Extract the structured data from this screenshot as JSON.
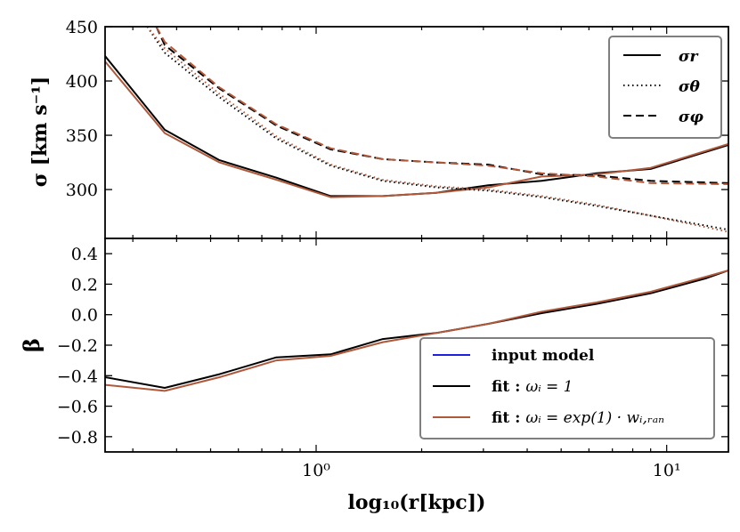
{
  "chart_data": [
    {
      "type": "line",
      "panel": "top",
      "ylabel": "σ [km s⁻¹]",
      "x_scale": "log",
      "xlim": [
        0.25,
        15
      ],
      "ylim": [
        255,
        450
      ],
      "yticks": [
        300,
        350,
        400,
        450
      ],
      "legend_placement": "top-right",
      "legend": [
        {
          "label": "σr",
          "style": "solid"
        },
        {
          "label": "σθ",
          "style": "dotted"
        },
        {
          "label": "σφ",
          "style": "dashed"
        }
      ],
      "series": [
        {
          "component": "σr",
          "fit": "black",
          "style": "solid",
          "x": [
            0.25,
            0.37,
            0.53,
            0.77,
            1.1,
            1.55,
            2.2,
            3.1,
            4.4,
            6.3,
            9,
            15
          ],
          "y": [
            423,
            355,
            327,
            311,
            294,
            294,
            297,
            304,
            308,
            315,
            319,
            341
          ]
        },
        {
          "component": "σr",
          "fit": "brown",
          "style": "solid",
          "x": [
            0.25,
            0.37,
            0.53,
            0.77,
            1.1,
            1.55,
            2.2,
            3.1,
            4.4,
            6.3,
            9,
            15
          ],
          "y": [
            418,
            352,
            325,
            309,
            293,
            294,
            297,
            302,
            312,
            314,
            320,
            342
          ]
        },
        {
          "component": "σθ",
          "fit": "black",
          "style": "dotted",
          "x": [
            0.33,
            0.37,
            0.53,
            0.77,
            1.1,
            1.55,
            2.2,
            3.1,
            4.4,
            6.3,
            9,
            15
          ],
          "y": [
            450,
            426,
            385,
            347,
            322,
            308,
            302,
            299,
            293,
            285,
            276,
            263
          ]
        },
        {
          "component": "σθ",
          "fit": "brown",
          "style": "dotted",
          "x": [
            0.33,
            0.37,
            0.53,
            0.77,
            1.1,
            1.55,
            2.2,
            3.1,
            4.4,
            6.3,
            9,
            15
          ],
          "y": [
            450,
            430,
            388,
            349,
            323,
            309,
            303,
            300,
            294,
            286,
            276,
            261
          ]
        },
        {
          "component": "σφ",
          "fit": "black",
          "style": "dashed",
          "x": [
            0.35,
            0.37,
            0.53,
            0.77,
            1.1,
            1.55,
            2.2,
            3.1,
            4.4,
            6.3,
            9,
            15
          ],
          "y": [
            450,
            433,
            393,
            359,
            337,
            328,
            325,
            323,
            314,
            313,
            308,
            306
          ]
        },
        {
          "component": "σφ",
          "fit": "brown",
          "style": "dashed",
          "x": [
            0.35,
            0.37,
            0.53,
            0.77,
            1.1,
            1.55,
            2.2,
            3.1,
            4.4,
            6.3,
            9,
            15
          ],
          "y": [
            450,
            436,
            394,
            360,
            338,
            328,
            325,
            322,
            315,
            312,
            306,
            305
          ]
        }
      ]
    },
    {
      "type": "line",
      "panel": "bottom",
      "xlabel": "log₁₀(r[kpc])",
      "ylabel": "β",
      "x_scale": "log",
      "xlim": [
        0.25,
        15
      ],
      "ylim": [
        -0.9,
        0.5
      ],
      "xticks": [
        {
          "value": 1,
          "label": "10⁰"
        },
        {
          "value": 10,
          "label": "10¹"
        }
      ],
      "yticks": [
        -0.8,
        -0.6,
        -0.4,
        -0.2,
        0.0,
        0.2,
        0.4
      ],
      "ytick_labels": [
        "−0.8",
        "−0.6",
        "−0.4",
        "−0.2",
        "0.0",
        "0.2",
        "0.4"
      ],
      "legend_placement": "lower-right",
      "legend": [
        {
          "label": "input model",
          "color": "#1f1fe0"
        },
        {
          "label_bold": "fit :",
          "label_math": "ωᵢ = 1",
          "color": "#000000"
        },
        {
          "label_bold": "fit :",
          "label_math": "ωᵢ = exp(1) · wᵢ,ᵣₐₙ",
          "color": "#b0583a"
        }
      ],
      "series": [
        {
          "name": "fit : ωi = 1",
          "color": "#000000",
          "x": [
            0.25,
            0.37,
            0.53,
            0.77,
            1.1,
            1.55,
            2.2,
            3.1,
            4.4,
            6.3,
            9,
            13,
            15
          ],
          "y": [
            -0.41,
            -0.48,
            -0.39,
            -0.28,
            -0.26,
            -0.16,
            -0.12,
            -0.06,
            0.01,
            0.07,
            0.14,
            0.24,
            0.29
          ]
        },
        {
          "name": "fit : ωi = exp(1) · wi,ran",
          "color": "#b0583a",
          "x": [
            0.25,
            0.37,
            0.53,
            0.77,
            1.1,
            1.55,
            2.2,
            3.1,
            4.4,
            6.3,
            9,
            13,
            15
          ],
          "y": [
            -0.46,
            -0.5,
            -0.41,
            -0.3,
            -0.27,
            -0.18,
            -0.12,
            -0.06,
            0.02,
            0.08,
            0.15,
            0.25,
            0.29
          ]
        }
      ]
    }
  ],
  "colors": {
    "fit_black": "#000000",
    "fit_brown": "#b0583a",
    "input_model": "#1f1fe0",
    "legend_frame": "#7f7f7f"
  }
}
